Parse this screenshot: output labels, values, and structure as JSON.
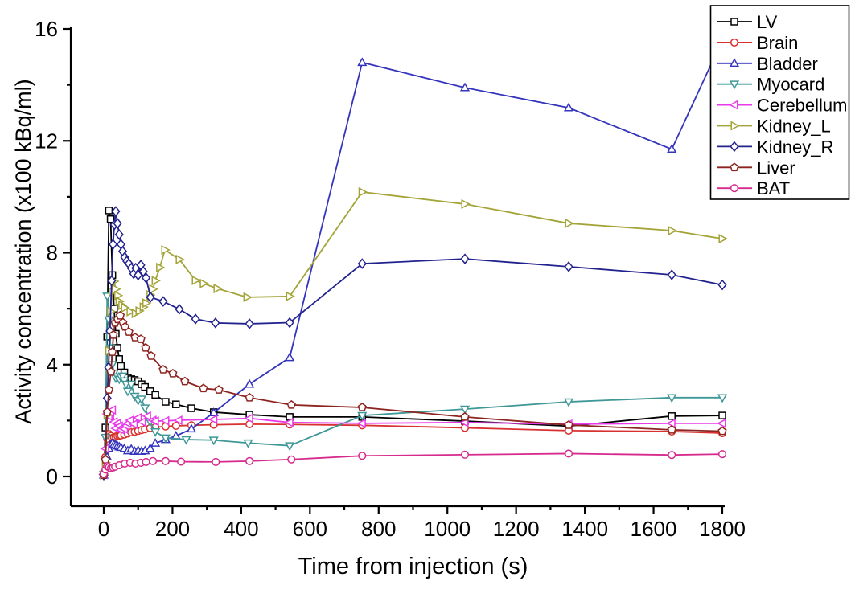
{
  "chart_data": {
    "type": "line",
    "title": "",
    "xlabel": "Time from injection (s)",
    "ylabel": "Activity concentration (x100 kBq/ml)",
    "xlim": [
      0,
      1800
    ],
    "ylim": [
      0,
      16
    ],
    "x_major_ticks": [
      0,
      200,
      400,
      600,
      800,
      1000,
      1200,
      1400,
      1600,
      1800
    ],
    "x_minor_ticks": [
      100,
      300,
      500,
      700,
      900,
      1100,
      1300,
      1500,
      1700
    ],
    "y_major_ticks": [
      0,
      4,
      8,
      12,
      16
    ],
    "y_minor_ticks": [
      2,
      6,
      10,
      14
    ],
    "grid": false,
    "legend_position": "top-right",
    "series": [
      {
        "name": "LV",
        "color": "#000000",
        "marker": "square",
        "points": [
          [
            0,
            0.07
          ],
          [
            5,
            1.75
          ],
          [
            10,
            5.0
          ],
          [
            15,
            9.51
          ],
          [
            20,
            9.2
          ],
          [
            25,
            7.2
          ],
          [
            30,
            6.0
          ],
          [
            35,
            5.1
          ],
          [
            40,
            4.6
          ],
          [
            45,
            4.2
          ],
          [
            50,
            3.95
          ],
          [
            60,
            3.72
          ],
          [
            70,
            3.53
          ],
          [
            80,
            3.48
          ],
          [
            90,
            3.45
          ],
          [
            100,
            3.4
          ],
          [
            110,
            3.3
          ],
          [
            120,
            3.2
          ],
          [
            135,
            3.05
          ],
          [
            150,
            2.92
          ],
          [
            180,
            2.67
          ],
          [
            210,
            2.58
          ],
          [
            255,
            2.44
          ],
          [
            320,
            2.3
          ],
          [
            424,
            2.21
          ],
          [
            541,
            2.13
          ],
          [
            752,
            2.13
          ],
          [
            1051,
            1.98
          ],
          [
            1353,
            1.8
          ],
          [
            1653,
            2.16
          ],
          [
            1800,
            2.18
          ]
        ]
      },
      {
        "name": "Brain",
        "color": "#d93030",
        "marker": "circle",
        "points": [
          [
            0,
            0.06
          ],
          [
            5,
            0.7
          ],
          [
            10,
            1.35
          ],
          [
            15,
            1.52
          ],
          [
            20,
            1.45
          ],
          [
            25,
            1.38
          ],
          [
            30,
            1.4
          ],
          [
            35,
            1.43
          ],
          [
            40,
            1.45
          ],
          [
            45,
            1.46
          ],
          [
            50,
            1.47
          ],
          [
            60,
            1.5
          ],
          [
            70,
            1.54
          ],
          [
            80,
            1.58
          ],
          [
            90,
            1.6
          ],
          [
            100,
            1.63
          ],
          [
            110,
            1.66
          ],
          [
            120,
            1.69
          ],
          [
            135,
            1.73
          ],
          [
            150,
            1.76
          ],
          [
            180,
            1.79
          ],
          [
            210,
            1.81
          ],
          [
            255,
            1.83
          ],
          [
            320,
            1.85
          ],
          [
            424,
            1.87
          ],
          [
            541,
            1.86
          ],
          [
            752,
            1.83
          ],
          [
            1051,
            1.74
          ],
          [
            1353,
            1.64
          ],
          [
            1653,
            1.61
          ],
          [
            1800,
            1.55
          ]
        ]
      },
      {
        "name": "Bladder",
        "color": "#3434bd",
        "marker": "triangle-up",
        "points": [
          [
            0,
            0.05
          ],
          [
            5,
            0.3
          ],
          [
            10,
            0.7
          ],
          [
            15,
            1.0
          ],
          [
            20,
            1.15
          ],
          [
            25,
            1.19
          ],
          [
            30,
            1.15
          ],
          [
            35,
            1.12
          ],
          [
            40,
            1.09
          ],
          [
            45,
            1.06
          ],
          [
            50,
            1.04
          ],
          [
            60,
            1.0
          ],
          [
            70,
            0.92
          ],
          [
            80,
            0.98
          ],
          [
            90,
            0.9
          ],
          [
            100,
            0.93
          ],
          [
            110,
            0.9
          ],
          [
            120,
            0.92
          ],
          [
            135,
            1.0
          ],
          [
            150,
            1.19
          ],
          [
            180,
            1.32
          ],
          [
            210,
            1.45
          ],
          [
            255,
            1.7
          ],
          [
            320,
            2.28
          ],
          [
            424,
            3.3
          ],
          [
            541,
            4.25
          ],
          [
            752,
            14.8
          ],
          [
            1051,
            13.9
          ],
          [
            1353,
            13.18
          ],
          [
            1653,
            11.7
          ],
          [
            1800,
            15.6
          ]
        ]
      },
      {
        "name": "Myocard",
        "color": "#3f9797",
        "marker": "triangle-down",
        "points": [
          [
            0,
            0.07
          ],
          [
            5,
            1.4
          ],
          [
            10,
            6.45
          ],
          [
            15,
            5.6
          ],
          [
            20,
            4.6
          ],
          [
            25,
            4.0
          ],
          [
            30,
            3.7
          ],
          [
            35,
            3.52
          ],
          [
            40,
            3.56
          ],
          [
            45,
            3.48
          ],
          [
            50,
            3.55
          ],
          [
            55,
            3.59
          ],
          [
            60,
            3.42
          ],
          [
            65,
            3.3
          ],
          [
            70,
            3.05
          ],
          [
            80,
            3.3
          ],
          [
            90,
            2.87
          ],
          [
            100,
            2.72
          ],
          [
            110,
            2.77
          ],
          [
            120,
            2.45
          ],
          [
            135,
            1.95
          ],
          [
            150,
            1.6
          ],
          [
            180,
            1.38
          ],
          [
            240,
            1.32
          ],
          [
            320,
            1.3
          ],
          [
            420,
            1.2
          ],
          [
            541,
            1.1
          ],
          [
            752,
            2.18
          ],
          [
            1051,
            2.41
          ],
          [
            1353,
            2.67
          ],
          [
            1653,
            2.82
          ],
          [
            1800,
            2.82
          ]
        ]
      },
      {
        "name": "Cerebellum",
        "color": "#e83ae8",
        "marker": "triangle-left",
        "points": [
          [
            0,
            0.07
          ],
          [
            5,
            1.0
          ],
          [
            10,
            2.24
          ],
          [
            15,
            2.16
          ],
          [
            20,
            2.3
          ],
          [
            25,
            2.38
          ],
          [
            30,
            1.95
          ],
          [
            35,
            1.72
          ],
          [
            40,
            1.9
          ],
          [
            45,
            1.8
          ],
          [
            50,
            1.67
          ],
          [
            55,
            1.75
          ],
          [
            60,
            1.7
          ],
          [
            65,
            1.81
          ],
          [
            70,
            1.9
          ],
          [
            77,
            2.01
          ],
          [
            88,
            1.87
          ],
          [
            100,
            2.1
          ],
          [
            112,
            1.95
          ],
          [
            127,
            2.16
          ],
          [
            143,
            2.01
          ],
          [
            150,
            1.98
          ],
          [
            180,
            1.99
          ],
          [
            218,
            2.01
          ],
          [
            320,
            2.04
          ],
          [
            424,
            2.08
          ],
          [
            541,
            1.93
          ],
          [
            752,
            1.9
          ],
          [
            1051,
            1.93
          ],
          [
            1353,
            1.87
          ],
          [
            1653,
            1.9
          ],
          [
            1800,
            1.9
          ]
        ]
      },
      {
        "name": "Kidney_L",
        "color": "#a3a338",
        "marker": "triangle-right",
        "points": [
          [
            0,
            0.05
          ],
          [
            5,
            0.5
          ],
          [
            10,
            2.2
          ],
          [
            15,
            4.5
          ],
          [
            20,
            5.9
          ],
          [
            25,
            6.6
          ],
          [
            30,
            6.98
          ],
          [
            35,
            6.7
          ],
          [
            41,
            6.47
          ],
          [
            45,
            6.26
          ],
          [
            53,
            6.12
          ],
          [
            61,
            6.03
          ],
          [
            77,
            5.89
          ],
          [
            92,
            5.83
          ],
          [
            103,
            5.92
          ],
          [
            115,
            6.06
          ],
          [
            123,
            6.2
          ],
          [
            135,
            6.49
          ],
          [
            143,
            6.7
          ],
          [
            150,
            7.0
          ],
          [
            163,
            7.47
          ],
          [
            178,
            8.1
          ],
          [
            220,
            7.76
          ],
          [
            267,
            7.01
          ],
          [
            290,
            6.9
          ],
          [
            330,
            6.72
          ],
          [
            417,
            6.41
          ],
          [
            541,
            6.44
          ],
          [
            752,
            10.17
          ],
          [
            1051,
            9.74
          ],
          [
            1353,
            9.05
          ],
          [
            1653,
            8.79
          ],
          [
            1800,
            8.5
          ]
        ]
      },
      {
        "name": "Kidney_R",
        "color": "#22228e",
        "marker": "diamond",
        "points": [
          [
            0,
            0.05
          ],
          [
            5,
            0.6
          ],
          [
            10,
            2.8
          ],
          [
            14,
            3.9
          ],
          [
            18,
            5.2
          ],
          [
            23,
            7.0
          ],
          [
            27,
            8.3
          ],
          [
            31,
            9.0
          ],
          [
            35,
            9.48
          ],
          [
            40,
            9.05
          ],
          [
            45,
            8.65
          ],
          [
            50,
            8.3
          ],
          [
            55,
            8.05
          ],
          [
            61,
            7.84
          ],
          [
            67,
            7.7
          ],
          [
            73,
            7.61
          ],
          [
            80,
            7.45
          ],
          [
            87,
            7.25
          ],
          [
            93,
            7.45
          ],
          [
            100,
            7.2
          ],
          [
            108,
            7.56
          ],
          [
            115,
            7.33
          ],
          [
            123,
            7.1
          ],
          [
            136,
            6.41
          ],
          [
            173,
            6.26
          ],
          [
            220,
            5.98
          ],
          [
            267,
            5.63
          ],
          [
            325,
            5.49
          ],
          [
            424,
            5.46
          ],
          [
            541,
            5.5
          ],
          [
            752,
            7.61
          ],
          [
            1051,
            7.78
          ],
          [
            1353,
            7.5
          ],
          [
            1653,
            7.21
          ],
          [
            1800,
            6.85
          ]
        ]
      },
      {
        "name": "Liver",
        "color": "#8c2420",
        "marker": "pentagon",
        "points": [
          [
            0,
            0.05
          ],
          [
            5,
            0.6
          ],
          [
            10,
            2.3
          ],
          [
            15,
            3.1
          ],
          [
            21,
            3.74
          ],
          [
            25,
            4.45
          ],
          [
            28,
            5.06
          ],
          [
            33,
            5.49
          ],
          [
            41,
            5.62
          ],
          [
            48,
            5.75
          ],
          [
            56,
            5.5
          ],
          [
            62,
            5.35
          ],
          [
            73,
            5.17
          ],
          [
            91,
            4.97
          ],
          [
            108,
            4.91
          ],
          [
            122,
            4.6
          ],
          [
            138,
            4.31
          ],
          [
            173,
            3.82
          ],
          [
            201,
            3.68
          ],
          [
            236,
            3.4
          ],
          [
            290,
            3.15
          ],
          [
            335,
            3.1
          ],
          [
            424,
            2.82
          ],
          [
            546,
            2.56
          ],
          [
            752,
            2.47
          ],
          [
            1051,
            2.13
          ],
          [
            1353,
            1.84
          ],
          [
            1653,
            1.67
          ],
          [
            1800,
            1.62
          ]
        ]
      },
      {
        "name": "BAT",
        "color": "#d62a8c",
        "marker": "circle",
        "points": [
          [
            0,
            0.1
          ],
          [
            5,
            0.25
          ],
          [
            10,
            0.37
          ],
          [
            15,
            0.33
          ],
          [
            21,
            0.3
          ],
          [
            27,
            0.32
          ],
          [
            33,
            0.35
          ],
          [
            45,
            0.4
          ],
          [
            61,
            0.46
          ],
          [
            77,
            0.49
          ],
          [
            92,
            0.46
          ],
          [
            108,
            0.49
          ],
          [
            123,
            0.52
          ],
          [
            143,
            0.55
          ],
          [
            180,
            0.55
          ],
          [
            225,
            0.53
          ],
          [
            326,
            0.52
          ],
          [
            424,
            0.55
          ],
          [
            546,
            0.61
          ],
          [
            752,
            0.74
          ],
          [
            1051,
            0.78
          ],
          [
            1353,
            0.82
          ],
          [
            1653,
            0.77
          ],
          [
            1800,
            0.8
          ]
        ]
      }
    ]
  }
}
